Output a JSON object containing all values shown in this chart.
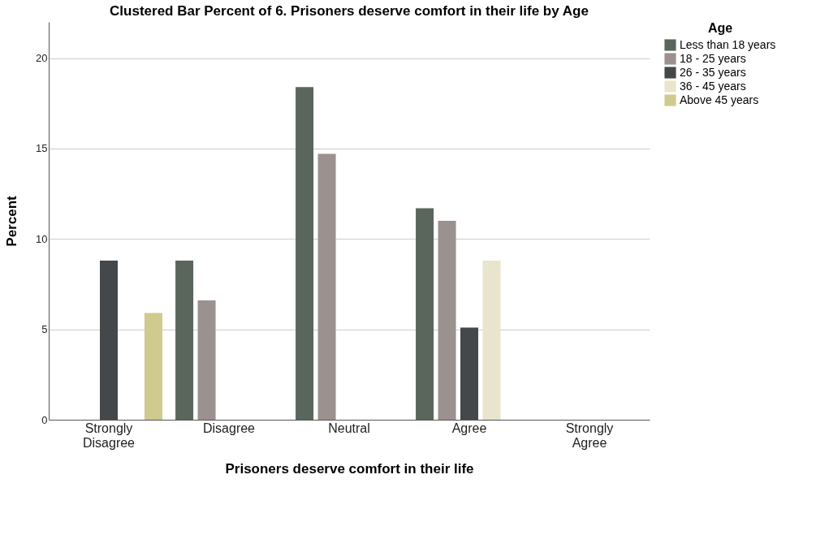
{
  "chart_data": {
    "type": "bar",
    "title": "Clustered Bar Percent of 6. Prisoners deserve comfort in their life by  Age",
    "xlabel": "Prisoners deserve comfort in their life",
    "ylabel": "Percent",
    "legend_title": "Age",
    "categories": [
      "Strongly Disagree",
      "Disagree",
      "Neutral",
      "Agree",
      "Strongly Agree"
    ],
    "series": [
      {
        "name": "Less than 18 years",
        "color": "#5a665c",
        "values": [
          null,
          8.8,
          18.4,
          11.7,
          null
        ]
      },
      {
        "name": "18 - 25 years",
        "color": "#9b918f",
        "values": [
          null,
          6.6,
          14.7,
          11.0,
          null
        ]
      },
      {
        "name": "26 - 35 years",
        "color": "#45484a",
        "values": [
          8.8,
          null,
          null,
          5.1,
          null
        ]
      },
      {
        "name": "36 - 45 years",
        "color": "#e9e4cc",
        "values": [
          null,
          null,
          null,
          8.8,
          null
        ]
      },
      {
        "name": "Above 45 years",
        "color": "#cfca8e",
        "values": [
          5.9,
          null,
          null,
          null,
          null
        ]
      }
    ],
    "ylim": [
      0,
      22
    ],
    "yticks": [
      0,
      5,
      10,
      15,
      20
    ],
    "grid": "y",
    "legend": "top right"
  }
}
